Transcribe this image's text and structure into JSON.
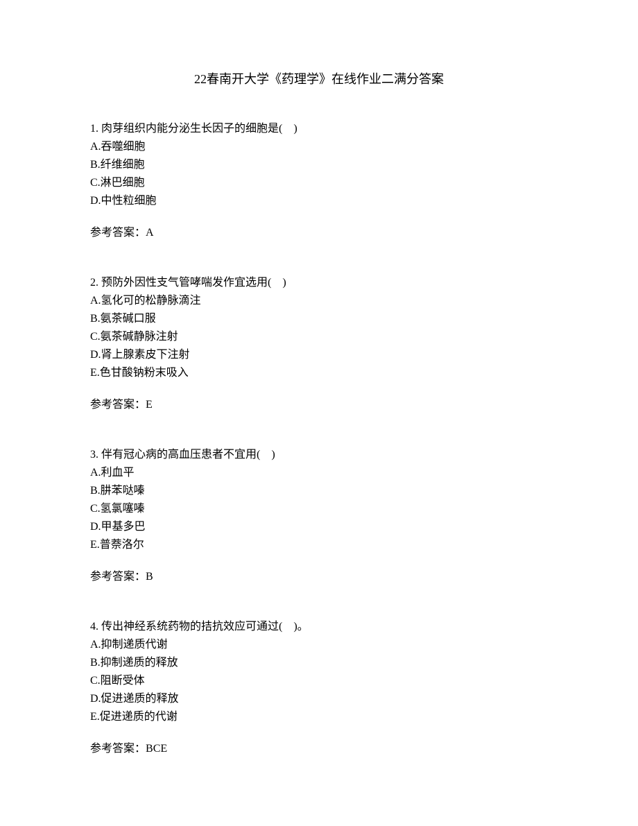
{
  "title": "22春南开大学《药理学》在线作业二满分答案",
  "questions": [
    {
      "number": "1.",
      "text": "肉芽组织内能分泌生长因子的细胞是(　)",
      "options": [
        "A.吞噬细胞",
        "B.纤维细胞",
        "C.淋巴细胞",
        "D.中性粒细胞"
      ],
      "answer_label": "参考答案：",
      "answer": "A"
    },
    {
      "number": "2.",
      "text": "预防外因性支气管哮喘发作宜选用(　)",
      "options": [
        "A.氢化可的松静脉滴注",
        "B.氨茶碱口服",
        "C.氨茶碱静脉注射",
        "D.肾上腺素皮下注射",
        "E.色甘酸钠粉末吸入"
      ],
      "answer_label": "参考答案：",
      "answer": "E"
    },
    {
      "number": "3.",
      "text": "伴有冠心病的高血压患者不宜用(　)",
      "options": [
        "A.利血平",
        "B.肼苯哒嗪",
        "C.氢氯噻嗪",
        "D.甲基多巴",
        "E.普萘洛尔"
      ],
      "answer_label": "参考答案：",
      "answer": "B"
    },
    {
      "number": "4.",
      "text": "传出神经系统药物的拮抗效应可通过(　)。",
      "options": [
        "A.抑制递质代谢",
        "B.抑制递质的释放",
        "C.阻断受体",
        "D.促进递质的释放",
        "E.促进递质的代谢"
      ],
      "answer_label": "参考答案：",
      "answer": "BCE"
    }
  ]
}
